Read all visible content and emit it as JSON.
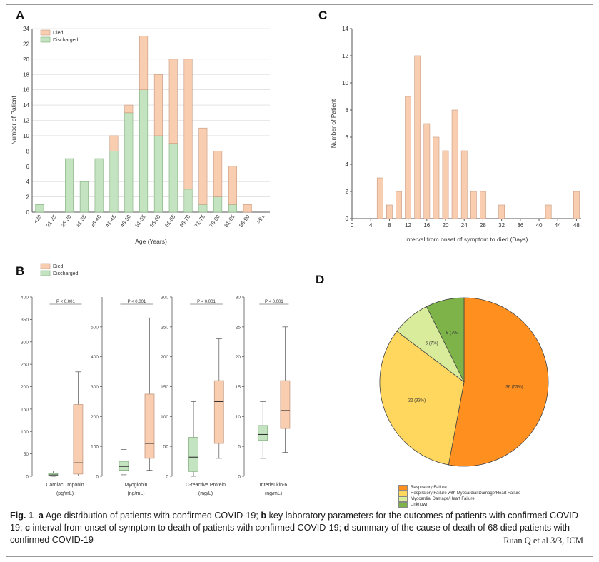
{
  "colors": {
    "died": "#f8cdb0",
    "died_edge": "#c89a80",
    "discharged": "#c4e3c0",
    "discharged_edge": "#7fae7a",
    "grid": "#d4d4d4",
    "axis": "#555555",
    "pie": [
      "#ff8f1f",
      "#ffd75e",
      "#d9ec9c",
      "#7db349"
    ]
  },
  "panel_labels": {
    "a": "A",
    "b": "B",
    "c": "C",
    "d": "D"
  },
  "chart_data": [
    {
      "panel": "A",
      "type": "bar",
      "stacked": true,
      "xlabel": "Age (Years)",
      "ylabel": "Number of Patient",
      "ylim": [
        0,
        24
      ],
      "yticks": [
        0,
        2,
        4,
        6,
        8,
        10,
        12,
        14,
        16,
        18,
        20,
        22,
        24
      ],
      "legend": {
        "position": "top-left",
        "entries": [
          "Died",
          "Discharged"
        ]
      },
      "grid": true,
      "categories": [
        "<20",
        "21-25",
        "26-30",
        "31-35",
        "36-40",
        "41-45",
        "46-50",
        "51-55",
        "56-60",
        "61-65",
        "66-70",
        "71-75",
        "76-80",
        "81-85",
        "86-90",
        ">91"
      ],
      "series": [
        {
          "name": "Discharged",
          "values": [
            1,
            0,
            7,
            4,
            7,
            8,
            13,
            16,
            10,
            9,
            3,
            1,
            2,
            1,
            0,
            0
          ]
        },
        {
          "name": "Died",
          "values": [
            0,
            0,
            0,
            0,
            0,
            2,
            1,
            7,
            8,
            11,
            17,
            10,
            6,
            5,
            1,
            0
          ]
        }
      ]
    },
    {
      "panel": "C",
      "type": "bar",
      "xlabel": "Interval from onset of symptom to died (Days)",
      "ylabel": "Number of Patient",
      "ylim": [
        0,
        14
      ],
      "yticks": [
        0,
        2,
        4,
        6,
        8,
        10,
        12,
        14
      ],
      "xlim": [
        0,
        49
      ],
      "xticks": [
        0,
        4,
        8,
        12,
        16,
        20,
        24,
        28,
        32,
        36,
        40,
        44,
        48
      ],
      "x": [
        6,
        8,
        10,
        12,
        14,
        16,
        18,
        20,
        22,
        24,
        26,
        28,
        32,
        42,
        48
      ],
      "values": [
        3,
        1,
        2,
        9,
        12,
        7,
        6,
        5,
        8,
        5,
        2,
        2,
        1,
        1,
        2
      ]
    },
    {
      "panel": "B",
      "type": "box",
      "legend": {
        "position": "top-left",
        "entries": [
          "Died",
          "Discharged"
        ]
      },
      "groups": [
        {
          "name": "Cardiac Troponin",
          "unit": "(pg/mL)",
          "ylim": [
            0,
            400
          ],
          "yticks": [
            0,
            50,
            100,
            150,
            200,
            250,
            300,
            350,
            400
          ],
          "p_label": "P < 0.001",
          "discharged": {
            "min": 0,
            "q1": 1,
            "median": 3,
            "q3": 6,
            "max": 12
          },
          "died": {
            "min": 1,
            "q1": 5,
            "median": 30,
            "q3": 160,
            "max": 233
          }
        },
        {
          "name": "Myoglobin",
          "unit": "(ng/mL)",
          "ylim": [
            0,
            600
          ],
          "yticks": [
            0,
            100,
            200,
            300,
            400,
            500
          ],
          "p_label": "P < 0.001",
          "discharged": {
            "min": 5,
            "q1": 20,
            "median": 33,
            "q3": 50,
            "max": 90
          },
          "died": {
            "min": 20,
            "q1": 60,
            "median": 110,
            "q3": 275,
            "max": 530
          }
        },
        {
          "name": "C-reactive Protein",
          "unit": "(mg/L)",
          "ylim": [
            0,
            300
          ],
          "yticks": [
            0,
            50,
            100,
            150,
            200,
            250,
            300
          ],
          "p_label": "P < 0.001",
          "discharged": {
            "min": 0,
            "q1": 8,
            "median": 32,
            "q3": 65,
            "max": 125
          },
          "died": {
            "min": 30,
            "q1": 55,
            "median": 125,
            "q3": 160,
            "max": 230
          }
        },
        {
          "name": "Interleukin-6",
          "unit": "(ng/mL)",
          "ylim": [
            0,
            30
          ],
          "yticks": [
            0,
            5,
            10,
            15,
            20,
            25,
            30
          ],
          "p_label": "P < 0.001",
          "discharged": {
            "min": 3,
            "q1": 6,
            "median": 7,
            "q3": 8.5,
            "max": 12.5
          },
          "died": {
            "min": 4,
            "q1": 8,
            "median": 11,
            "q3": 16,
            "max": 25
          }
        }
      ]
    },
    {
      "panel": "D",
      "type": "pie",
      "labels": [
        "Respiratory Failure",
        "Respiratory Failure with Myocardial Damage/Heart Failure",
        "Myocardial Damage/Heart Failure",
        "Unknown"
      ],
      "values": [
        36,
        22,
        5,
        5
      ],
      "slice_labels": [
        "36 (53%)",
        "22 (33%)",
        "5 (7%)",
        "5 (7%)"
      ],
      "legend": {
        "position": "bottom",
        "entries": [
          "Respiratory Failure",
          "Respiratory Failure with Myocardial Damage/Heart Failure",
          "Myocardial Damage/Heart Failure",
          "Unknown"
        ]
      }
    }
  ],
  "caption": {
    "fig_label": "Fig. 1",
    "a_letter": "a",
    "a_text": " Age distribution of patients with confirmed COVID-19; ",
    "b_letter": "b",
    "b_text": " key laboratory parameters for the outcomes of patients with confirmed COVID-19; ",
    "c_letter": "c",
    "c_text": " interval from onset of symptom to death of patients with confirmed COVID-19; ",
    "d_letter": "d",
    "d_text": " summary of the cause of death of 68 died patients with confirmed COVID-19"
  },
  "signature": "Ruan Q et al 3/3, ICM"
}
